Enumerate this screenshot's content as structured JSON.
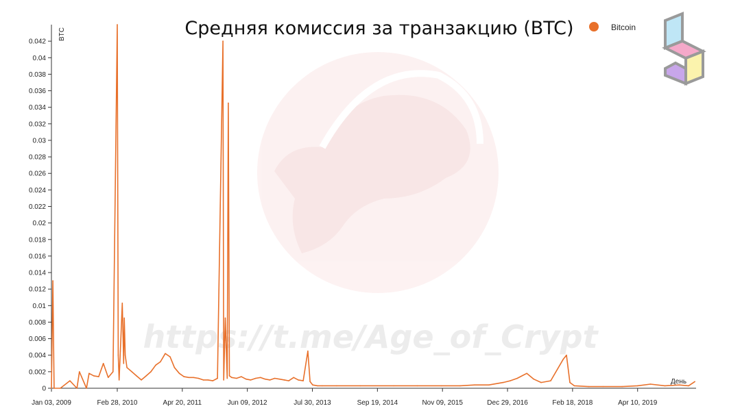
{
  "chart_data": {
    "type": "line",
    "title": "Средняя комиссия за транзакцию (BTC)",
    "ylabel": "BTC",
    "xlabel": "День",
    "ylim": [
      0,
      0.044
    ],
    "yticks": [
      "0",
      "0.002",
      "0.004",
      "0.006",
      "0.008",
      "0.01",
      "0.012",
      "0.014",
      "0.016",
      "0.018",
      "0.02",
      "0.022",
      "0.024",
      "0.026",
      "0.028",
      "0.03",
      "0.032",
      "0.034",
      "0.036",
      "0.038",
      "0.04",
      "0.042"
    ],
    "xticks": [
      "Jan 03, 2009",
      "Feb 28, 2010",
      "Apr 20, 2011",
      "Jun 09, 2012",
      "Jul 30, 2013",
      "Sep 19, 2014",
      "Nov 09, 2015",
      "Dec 29, 2016",
      "Feb 18, 2018",
      "Apr 10, 2019"
    ],
    "grid": false,
    "legend": "top-right",
    "series": [
      {
        "name": "Bitcoin",
        "color": "#e8702a",
        "x": [
          "2009-01-03",
          "2009-01-12",
          "2009-01-20",
          "2009-03-01",
          "2009-05-01",
          "2009-06-15",
          "2009-07-01",
          "2009-08-15",
          "2009-09-01",
          "2009-10-01",
          "2009-11-01",
          "2009-12-01",
          "2010-01-01",
          "2010-02-01",
          "2010-02-28",
          "2010-03-06",
          "2010-03-12",
          "2010-03-20",
          "2010-04-01",
          "2010-04-10",
          "2010-04-14",
          "2010-04-20",
          "2010-05-01",
          "2010-06-01",
          "2010-07-01",
          "2010-08-01",
          "2010-09-01",
          "2010-10-01",
          "2010-11-01",
          "2010-12-01",
          "2011-01-01",
          "2011-02-01",
          "2011-03-01",
          "2011-04-01",
          "2011-05-01",
          "2011-06-01",
          "2011-07-01",
          "2011-08-01",
          "2011-09-01",
          "2011-10-01",
          "2011-11-01",
          "2011-12-01",
          "2012-01-05",
          "2012-01-10",
          "2012-01-20",
          "2012-02-01",
          "2012-02-08",
          "2012-02-15",
          "2012-03-01",
          "2012-04-01",
          "2012-05-01",
          "2012-06-01",
          "2012-07-01",
          "2012-08-01",
          "2012-09-01",
          "2012-10-01",
          "2012-11-01",
          "2012-12-01",
          "2013-01-01",
          "2013-02-01",
          "2013-03-01",
          "2013-04-01",
          "2013-05-01",
          "2013-06-01",
          "2013-07-01",
          "2013-07-15",
          "2013-08-01",
          "2013-09-01",
          "2013-10-01",
          "2014-01-01",
          "2014-06-01",
          "2015-01-01",
          "2015-06-01",
          "2015-11-01",
          "2016-03-01",
          "2016-06-01",
          "2016-09-01",
          "2016-12-01",
          "2017-01-15",
          "2017-03-01",
          "2017-05-01",
          "2017-06-15",
          "2017-08-01",
          "2017-10-01",
          "2017-12-20",
          "2018-01-10",
          "2018-02-01",
          "2018-03-01",
          "2018-06-01",
          "2018-09-01",
          "2019-01-01",
          "2019-04-10",
          "2019-07-01",
          "2019-10-01",
          "2020-01-01",
          "2020-03-01",
          "2020-04-10"
        ],
        "values": [
          0,
          0.013,
          0,
          0,
          0.0009,
          0,
          0.002,
          0,
          0.0018,
          0.0015,
          0.0014,
          0.003,
          0.0013,
          0.002,
          0.044,
          0.004,
          0.001,
          0.0045,
          0.0103,
          0.003,
          0.0085,
          0.004,
          0.0025,
          0.002,
          0.0015,
          0.001,
          0.0015,
          0.002,
          0.0028,
          0.0032,
          0.0042,
          0.0038,
          0.0025,
          0.0018,
          0.0014,
          0.0013,
          0.0013,
          0.0012,
          0.001,
          0.001,
          0.0009,
          0.0012,
          0.042,
          0.001,
          0.0085,
          0.0012,
          0.0345,
          0.0015,
          0.0013,
          0.0012,
          0.0014,
          0.0011,
          0.001,
          0.0012,
          0.0013,
          0.0011,
          0.001,
          0.0012,
          0.0011,
          0.001,
          0.0009,
          0.0013,
          0.001,
          0.0009,
          0.0045,
          0.0008,
          0.0004,
          0.0003,
          0.0003,
          0.0003,
          0.0003,
          0.0003,
          0.0003,
          0.0003,
          0.0003,
          0.0004,
          0.0004,
          0.0007,
          0.0009,
          0.0012,
          0.0018,
          0.0011,
          0.0007,
          0.0009,
          0.0035,
          0.004,
          0.0007,
          0.0003,
          0.0002,
          0.0002,
          0.0002,
          0.0003,
          0.0005,
          0.0003,
          0.0004,
          0.0003,
          0.0008
        ]
      }
    ]
  },
  "watermark": {
    "text": "https://t.me/Age_of_Crypt"
  }
}
